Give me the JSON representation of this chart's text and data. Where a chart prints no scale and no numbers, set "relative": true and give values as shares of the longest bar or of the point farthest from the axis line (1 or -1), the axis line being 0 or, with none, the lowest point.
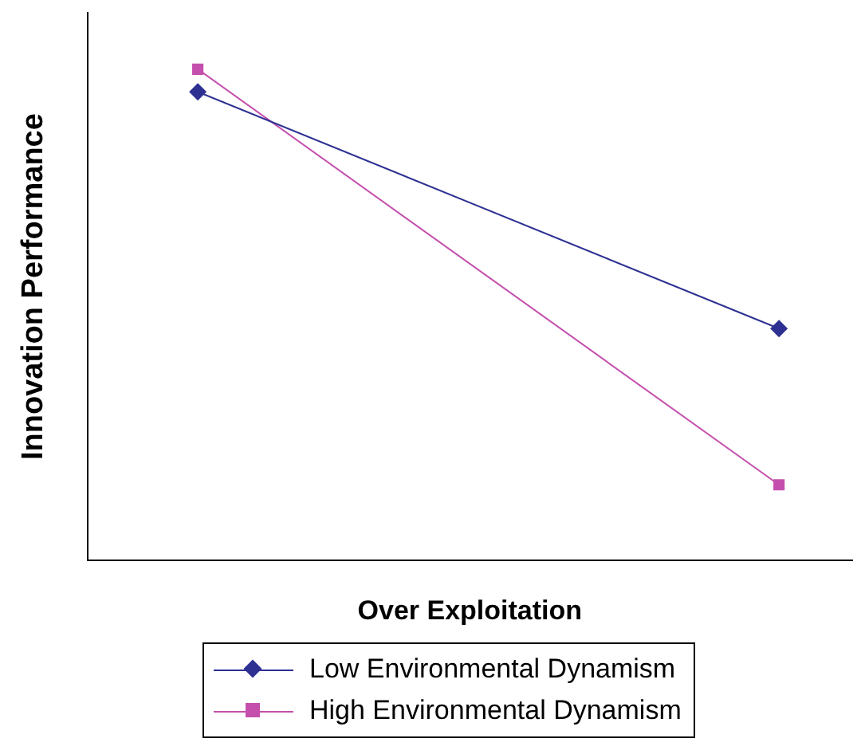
{
  "chart_data": {
    "type": "line",
    "xlabel": "Over Exploitation",
    "ylabel": "Innovation Performance",
    "categories": [
      null,
      null
    ],
    "relative": true,
    "legend": "bottom",
    "grid": false,
    "line_style": "solid",
    "series": [
      {
        "name": "Low Environmental Dynamism",
        "color": "#2e3192",
        "marker": "diamond",
        "values": [
          0.954,
          0.472
        ]
      },
      {
        "name": "High Environmental Dynamism",
        "color": "#c54fad",
        "marker": "square",
        "values": [
          1,
          0.154
        ]
      }
    ]
  }
}
